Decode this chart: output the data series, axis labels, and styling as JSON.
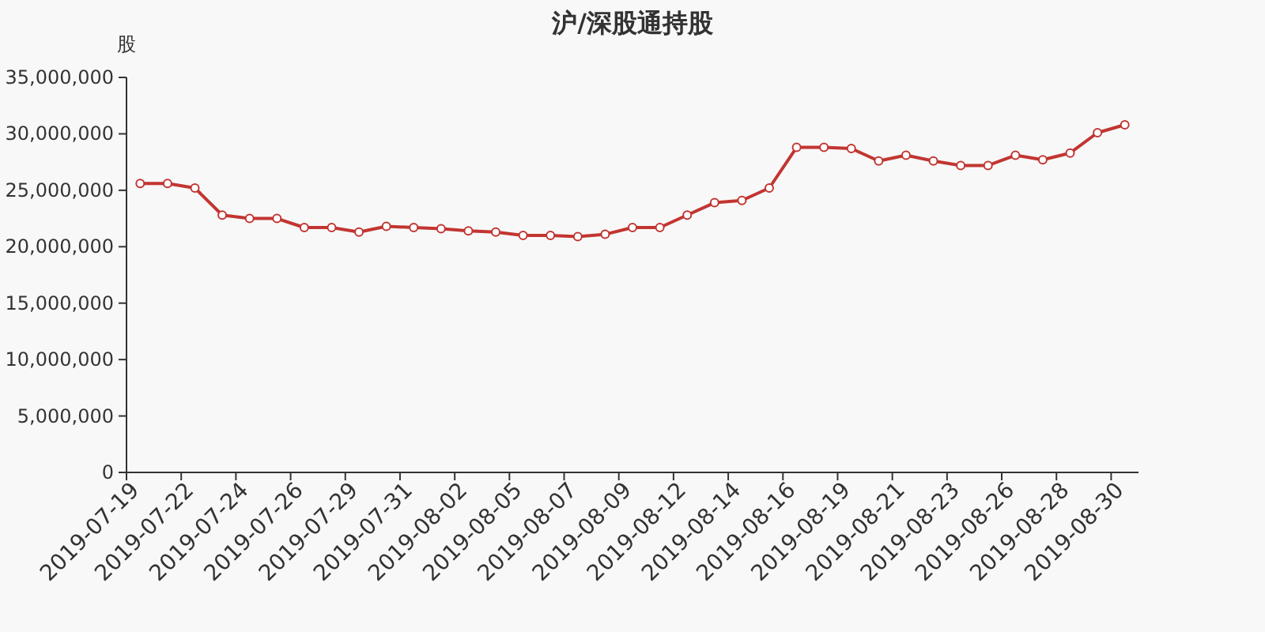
{
  "chart_data": {
    "type": "line",
    "title": "沪/深股通持股",
    "ylabel": "股",
    "categories": [
      "2019-07-19",
      null,
      "2019-07-22",
      null,
      "2019-07-24",
      null,
      "2019-07-26",
      null,
      "2019-07-29",
      null,
      "2019-07-31",
      null,
      "2019-08-02",
      null,
      "2019-08-05",
      null,
      "2019-08-07",
      null,
      "2019-08-09",
      null,
      "2019-08-12",
      null,
      "2019-08-14",
      null,
      "2019-08-16",
      null,
      "2019-08-19",
      null,
      "2019-08-21",
      null,
      "2019-08-23",
      null,
      "2019-08-26",
      null,
      "2019-08-28",
      null,
      "2019-08-30"
    ],
    "series": [
      {
        "color": "#c23531",
        "values": [
          25600000,
          25600000,
          25200000,
          22800000,
          22500000,
          22500000,
          21700000,
          21700000,
          21300000,
          21800000,
          21700000,
          21600000,
          21400000,
          21300000,
          21000000,
          21000000,
          20900000,
          21100000,
          21700000,
          21700000,
          22800000,
          23900000,
          24100000,
          25200000,
          28800000,
          28800000,
          28700000,
          27600000,
          28100000,
          27600000,
          27200000,
          27200000,
          28100000,
          27700000,
          28300000,
          30100000,
          30800000
        ]
      }
    ],
    "ylim": [
      0,
      35000000
    ],
    "yticks": [
      {
        "value": 0,
        "label": "0"
      },
      {
        "value": 5000000,
        "label": "5,000,000"
      },
      {
        "value": 10000000,
        "label": "10,000,000"
      },
      {
        "value": 15000000,
        "label": "15,000,000"
      },
      {
        "value": 20000000,
        "label": "20,000,000"
      },
      {
        "value": 25000000,
        "label": "25,000,000"
      },
      {
        "value": 30000000,
        "label": "30,000,000"
      },
      {
        "value": 35000000,
        "label": "35,000,000"
      }
    ],
    "grid": false,
    "marker": "circle",
    "line_style": "solid"
  }
}
